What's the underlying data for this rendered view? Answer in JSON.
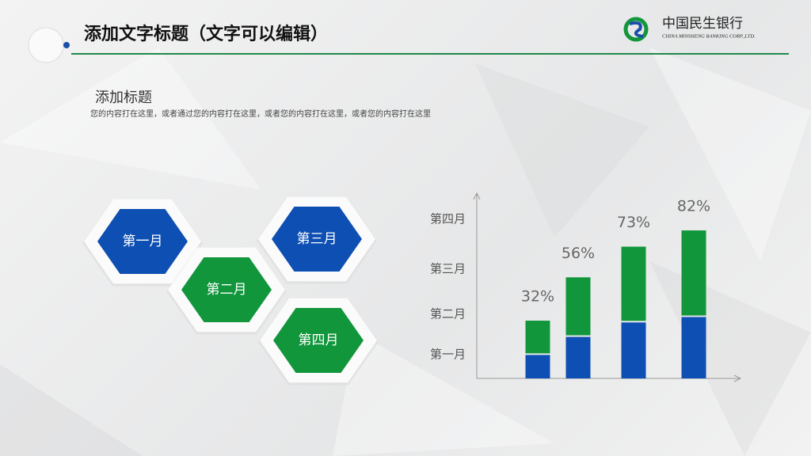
{
  "header": {
    "title": "添加文字标题（文字可以编辑）",
    "logo_cn": "中国民生银行",
    "logo_en": "CHINA MINSHENG BANKING CORP.,LTD."
  },
  "section": {
    "title": "添加标题",
    "body": "您的内容打在这里，或者通过您的内容打在这里，或者您的内容打在这里，或者您的内容打在这里"
  },
  "hexagons": [
    "第一月",
    "第二月",
    "第三月",
    "第四月"
  ],
  "chart_data": {
    "type": "bar",
    "stacked": true,
    "categories": [
      null,
      null,
      null,
      null
    ],
    "y_labels": [
      "第一月",
      "第二月",
      "第三月",
      "第四月"
    ],
    "series": [
      {
        "color": "#0e4fb3",
        "values": [
          13,
          23,
          31,
          34
        ]
      },
      {
        "color": "#12963c",
        "values": [
          19,
          33,
          42,
          48
        ]
      }
    ],
    "total_labels": [
      "32%",
      "56%",
      "73%",
      "82%"
    ],
    "ylim": [
      0,
      100
    ]
  }
}
